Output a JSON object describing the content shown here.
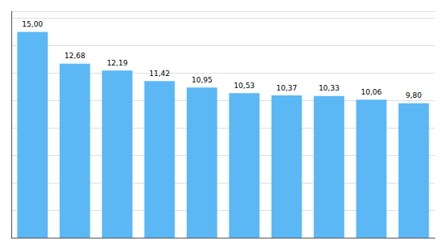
{
  "chart_data": {
    "type": "bar",
    "categories": [
      null,
      null,
      null,
      null,
      null,
      null,
      null,
      null,
      null,
      null
    ],
    "values": [
      15.0,
      12.68,
      12.19,
      11.42,
      10.95,
      10.53,
      10.37,
      10.33,
      10.06,
      9.8
    ],
    "value_labels": [
      "15,00",
      "12,68",
      "12,19",
      "11,42",
      "10,95",
      "10,53",
      "10,37",
      "10,33",
      "10,06",
      "9,80"
    ],
    "data_labels": true,
    "color": "#5BB8F5",
    "ylim": [
      0,
      16.5
    ],
    "yticks": [
      0,
      2,
      4,
      6,
      8,
      10,
      12,
      14,
      16
    ],
    "grid": true,
    "tick_labels": false
  }
}
